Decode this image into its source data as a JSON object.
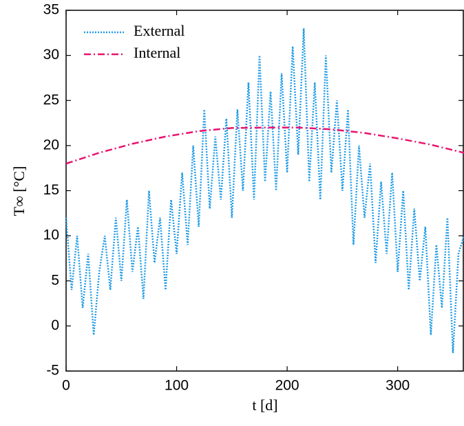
{
  "chart_data": {
    "type": "line",
    "xlabel": "t [d]",
    "ylabel": "T∞ [°C]",
    "xlim": [
      0,
      360
    ],
    "ylim": [
      -5,
      35
    ],
    "xticks": [
      0,
      100,
      200,
      300
    ],
    "yticks": [
      -5,
      0,
      5,
      10,
      15,
      20,
      25,
      30,
      35
    ],
    "legend": "upper left",
    "series": [
      {
        "name": "External",
        "color": "#1e9be6",
        "style": "dotted",
        "x": [
          0,
          5,
          10,
          15,
          20,
          25,
          30,
          35,
          40,
          45,
          50,
          55,
          60,
          65,
          70,
          75,
          80,
          85,
          90,
          95,
          100,
          105,
          110,
          115,
          120,
          125,
          130,
          135,
          140,
          145,
          150,
          155,
          160,
          165,
          170,
          175,
          180,
          185,
          190,
          195,
          200,
          205,
          210,
          215,
          220,
          225,
          230,
          235,
          240,
          245,
          250,
          255,
          260,
          265,
          270,
          275,
          280,
          285,
          290,
          295,
          300,
          305,
          310,
          315,
          320,
          325,
          330,
          335,
          340,
          345,
          350,
          355,
          360
        ],
        "values": [
          12,
          4,
          10,
          2,
          8,
          -1,
          6,
          10,
          4,
          12,
          5,
          14,
          6,
          11,
          3,
          15,
          7,
          12,
          4,
          14,
          8,
          17,
          9,
          20,
          11,
          24,
          13,
          21,
          14,
          23,
          12,
          24,
          15,
          27,
          14,
          30,
          16,
          26,
          15,
          28,
          17,
          31,
          19,
          33,
          16,
          27,
          14,
          30,
          17,
          25,
          15,
          24,
          9,
          20,
          12,
          18,
          7,
          16,
          8,
          17,
          6,
          15,
          4,
          13,
          5,
          11,
          -1,
          9,
          2,
          12,
          -3,
          8,
          10
        ]
      },
      {
        "name": "Internal",
        "color": "#e8126e",
        "style": "dashdot",
        "x": [
          0,
          30,
          60,
          90,
          120,
          150,
          180,
          210,
          240,
          270,
          300,
          330,
          360
        ],
        "values": [
          18,
          19.2,
          20.2,
          21,
          21.6,
          21.95,
          22,
          22,
          21.8,
          21.4,
          20.8,
          20.1,
          19.2
        ]
      }
    ]
  }
}
